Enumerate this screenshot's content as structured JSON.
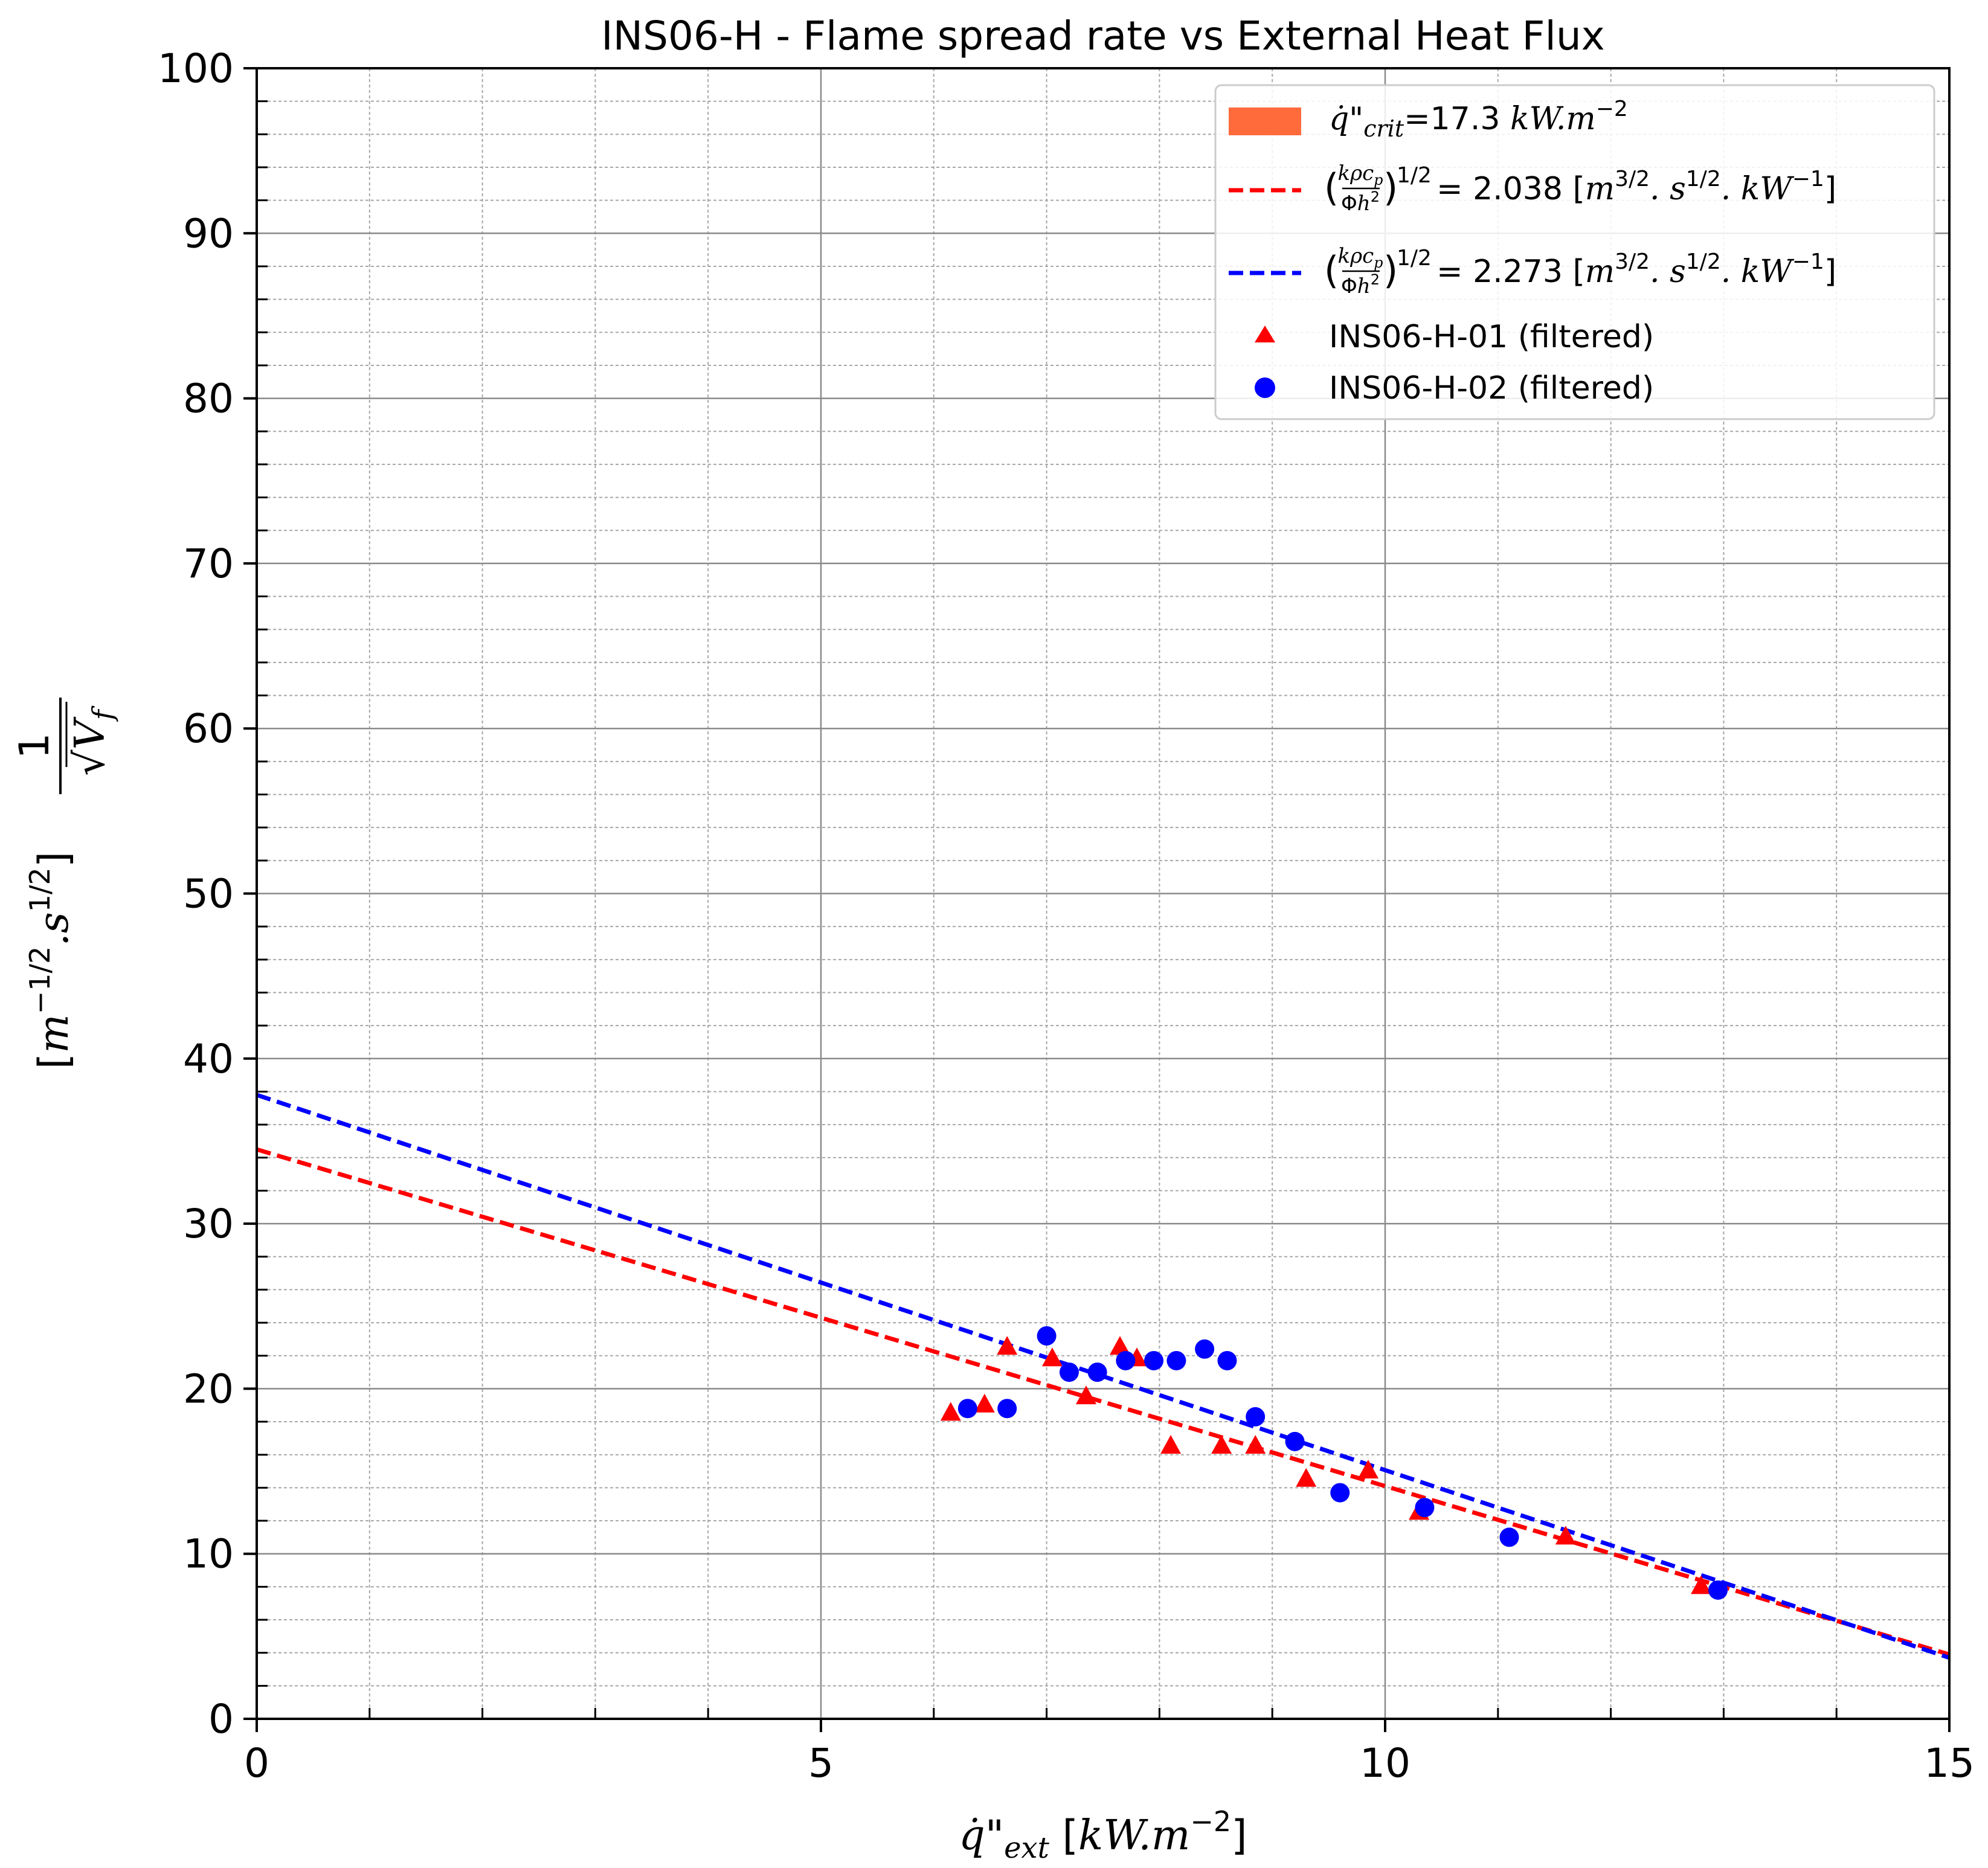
{
  "chart_data": {
    "type": "scatter",
    "title": "INS06-H - Flame spread rate vs External Heat Flux",
    "xlabel": "q̇\"ext [kW.m⁻²]",
    "ylabel": "1/√Vf [m⁻¹ᐟ².s¹ᐟ²]",
    "xlim": [
      0,
      15
    ],
    "ylim": [
      0,
      100
    ],
    "x_ticks": [
      "0",
      "5",
      "10",
      "15"
    ],
    "y_ticks": [
      "0",
      "10",
      "20",
      "30",
      "40",
      "50",
      "60",
      "70",
      "80",
      "90",
      "100"
    ],
    "grid": true,
    "legend_position": "top-right",
    "legend": [
      {
        "kind": "patch",
        "label": "q̇\"crit=17.3 kW.m⁻²",
        "color": "#ff6b3b"
      },
      {
        "kind": "dash",
        "label": "(kρcp/Φh²)^1/2 = 2.038 [m^3/2.s^1/2.kW^-1]",
        "color": "#ff0000"
      },
      {
        "kind": "dash",
        "label": "(kρcp/Φh²)^1/2 = 2.273 [m^3/2.s^1/2.kW^-1]",
        "color": "#0000ff"
      },
      {
        "kind": "triangle",
        "label": "INS06-H-01 (filtered)",
        "color": "#ff0000"
      },
      {
        "kind": "circle",
        "label": "INS06-H-02 (filtered)",
        "color": "#0000ff"
      }
    ],
    "lines": [
      {
        "name": "2.038",
        "color": "#ff0000",
        "x": [
          0,
          15
        ],
        "y": [
          34.5,
          3.9
        ]
      },
      {
        "name": "2.273",
        "color": "#0000ff",
        "x": [
          0,
          15
        ],
        "y": [
          37.8,
          3.7
        ]
      }
    ],
    "series": [
      {
        "name": "INS06-H-01 (filtered)",
        "marker": "triangle",
        "color": "#ff0000",
        "x": [
          6.15,
          6.45,
          6.65,
          7.05,
          7.35,
          7.65,
          7.8,
          8.1,
          8.55,
          8.85,
          9.3,
          9.85,
          10.3,
          11.6,
          12.8
        ],
        "y": [
          18.5,
          19.0,
          22.5,
          21.8,
          19.5,
          22.5,
          21.8,
          16.5,
          16.5,
          16.5,
          14.5,
          15.0,
          12.5,
          11.0,
          8.0
        ]
      },
      {
        "name": "INS06-H-02 (filtered)",
        "marker": "circle",
        "color": "#0000ff",
        "x": [
          6.3,
          6.65,
          7.0,
          7.2,
          7.45,
          7.7,
          7.95,
          8.15,
          8.4,
          8.6,
          8.85,
          9.2,
          9.6,
          10.35,
          11.1,
          12.95
        ],
        "y": [
          18.8,
          18.8,
          23.2,
          21.0,
          21.0,
          21.7,
          21.7,
          21.7,
          22.4,
          21.7,
          18.3,
          16.8,
          13.7,
          12.8,
          11.0,
          7.8
        ]
      }
    ]
  }
}
